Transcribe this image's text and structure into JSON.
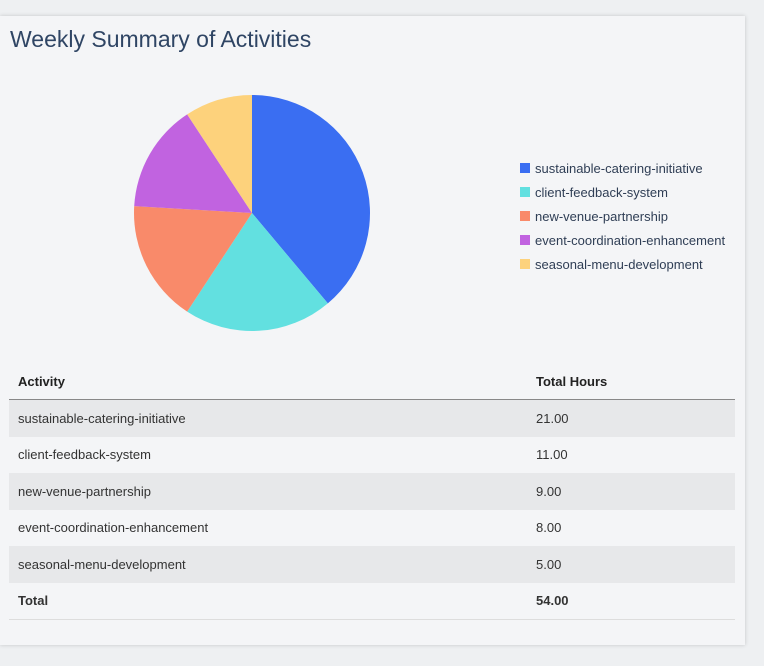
{
  "title": "Weekly Summary of Activities",
  "chart_data": {
    "type": "pie",
    "categories": [
      "sustainable-catering-initiative",
      "client-feedback-system",
      "new-venue-partnership",
      "event-coordination-enhancement",
      "seasonal-menu-development"
    ],
    "values": [
      21,
      11,
      9,
      8,
      5
    ],
    "colors": [
      "#3a6ef2",
      "#62e0e0",
      "#f98a6a",
      "#c163e0",
      "#fdd27c"
    ],
    "legend_position": "right"
  },
  "table": {
    "headers": [
      "Activity",
      "Total Hours"
    ],
    "rows": [
      [
        "sustainable-catering-initiative",
        "21.00"
      ],
      [
        "client-feedback-system",
        "11.00"
      ],
      [
        "new-venue-partnership",
        "9.00"
      ],
      [
        "event-coordination-enhancement",
        "8.00"
      ],
      [
        "seasonal-menu-development",
        "5.00"
      ]
    ],
    "total": [
      "Total",
      "54.00"
    ]
  }
}
